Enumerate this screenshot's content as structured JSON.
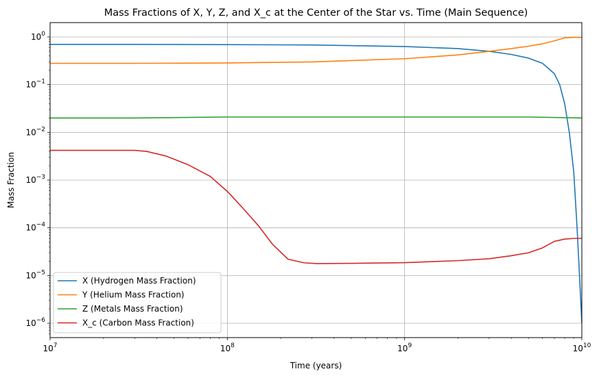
{
  "chart_data": {
    "type": "line",
    "title": "Mass Fractions of X, Y, Z, and X_c at the Center of the Star vs. Time (Main Sequence)",
    "xlabel": "Time (years)",
    "ylabel": "Mass Fraction",
    "xscale": "log",
    "yscale": "log",
    "xlim": [
      10000000.0,
      10000000000.0
    ],
    "ylim": [
      5e-07,
      2
    ],
    "grid": true,
    "legend_position": "lower-left",
    "x_ticks": [
      {
        "value": 10000000.0,
        "base": "10",
        "exp": "7"
      },
      {
        "value": 100000000.0,
        "base": "10",
        "exp": "8"
      },
      {
        "value": 1000000000.0,
        "base": "10",
        "exp": "9"
      },
      {
        "value": 10000000000.0,
        "base": "10",
        "exp": "10"
      }
    ],
    "y_ticks": [
      {
        "value": 1e-06,
        "base": "10",
        "exp": "−6"
      },
      {
        "value": 1e-05,
        "base": "10",
        "exp": "−5"
      },
      {
        "value": 0.0001,
        "base": "10",
        "exp": "−4"
      },
      {
        "value": 0.001,
        "base": "10",
        "exp": "−3"
      },
      {
        "value": 0.01,
        "base": "10",
        "exp": "−2"
      },
      {
        "value": 0.1,
        "base": "10",
        "exp": "−1"
      },
      {
        "value": 1,
        "base": "10",
        "exp": "0"
      }
    ],
    "series": [
      {
        "name": "X (Hydrogen Mass Fraction)",
        "color": "#1f77b4",
        "x": [
          10000000.0,
          30000000.0,
          100000000.0,
          300000000.0,
          1000000000.0,
          2000000000.0,
          3000000000.0,
          4000000000.0,
          5000000000.0,
          6000000000.0,
          7000000000.0,
          7500000000.0,
          8000000000.0,
          8500000000.0,
          9000000000.0,
          9400000000.0,
          9700000000.0,
          10000000000.0
        ],
        "y": [
          0.7,
          0.7,
          0.69,
          0.68,
          0.63,
          0.57,
          0.5,
          0.43,
          0.36,
          0.28,
          0.17,
          0.1,
          0.04,
          0.01,
          0.0015,
          0.0001,
          1e-05,
          1e-06
        ]
      },
      {
        "name": "Y (Helium Mass Fraction)",
        "color": "#ff7f0e",
        "x": [
          10000000.0,
          30000000.0,
          100000000.0,
          300000000.0,
          1000000000.0,
          2000000000.0,
          3000000000.0,
          4000000000.0,
          5000000000.0,
          6000000000.0,
          7000000000.0,
          8000000000.0,
          9000000000.0,
          10000000000.0
        ],
        "y": [
          0.28,
          0.28,
          0.285,
          0.3,
          0.35,
          0.42,
          0.5,
          0.57,
          0.64,
          0.72,
          0.83,
          0.96,
          0.98,
          0.98
        ]
      },
      {
        "name": "Z (Metals Mass Fraction)",
        "color": "#2ca02c",
        "x": [
          10000000.0,
          30000000.0,
          100000000.0,
          1000000000.0,
          5000000000.0,
          10000000000.0
        ],
        "y": [
          0.02,
          0.02,
          0.021,
          0.021,
          0.021,
          0.02
        ]
      },
      {
        "name": "X_c (Carbon Mass Fraction)",
        "color": "#d62728",
        "x": [
          10000000.0,
          20000000.0,
          30000000.0,
          35000000.0,
          45000000.0,
          60000000.0,
          80000000.0,
          100000000.0,
          120000000.0,
          150000000.0,
          180000000.0,
          220000000.0,
          270000000.0,
          320000000.0,
          500000000.0,
          1000000000.0,
          2000000000.0,
          3000000000.0,
          4000000000.0,
          5000000000.0,
          6000000000.0,
          7000000000.0,
          8000000000.0,
          9000000000.0,
          10000000000.0
        ],
        "y": [
          0.0042,
          0.0042,
          0.0042,
          0.004,
          0.0032,
          0.0021,
          0.0012,
          0.00058,
          0.00028,
          0.00011,
          4.5e-05,
          2.2e-05,
          1.85e-05,
          1.78e-05,
          1.8e-05,
          1.86e-05,
          2.05e-05,
          2.25e-05,
          2.6e-05,
          3e-05,
          3.8e-05,
          5.2e-05,
          5.8e-05,
          6e-05,
          6e-05
        ]
      }
    ]
  }
}
